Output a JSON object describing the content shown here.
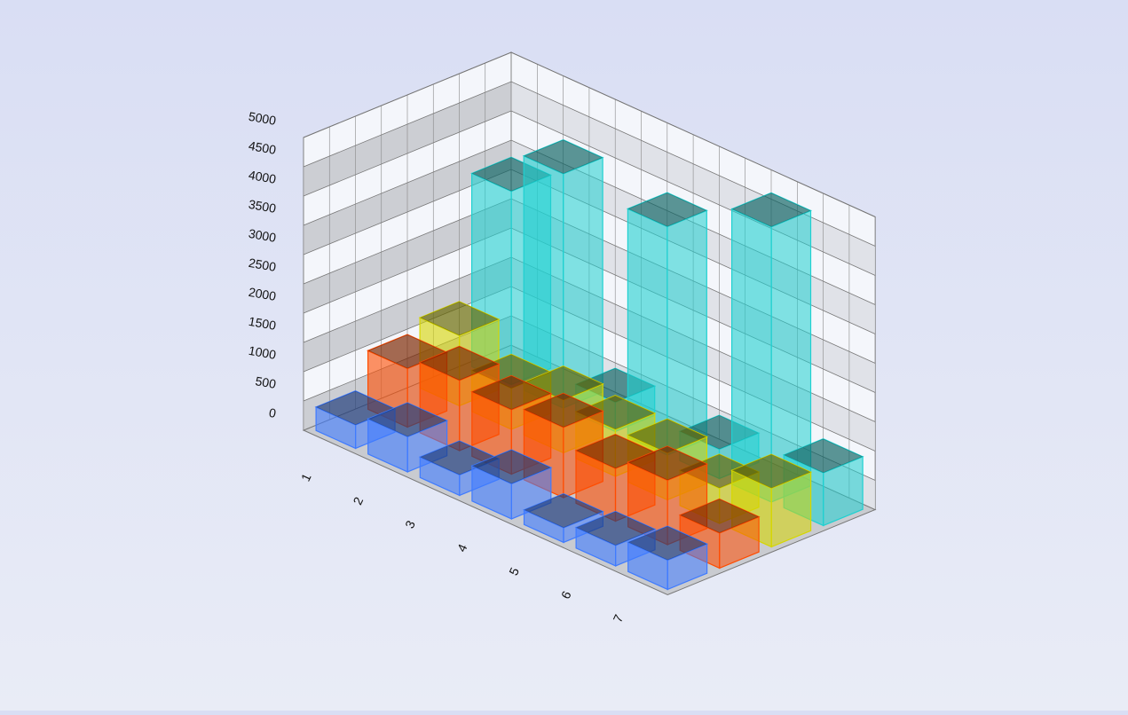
{
  "chart_data": {
    "type": "bar3d",
    "categories": [
      "1",
      "2",
      "3",
      "4",
      "5",
      "6",
      "7"
    ],
    "series": [
      {
        "color": "#3f7bff",
        "values": [
          400,
          600,
          350,
          600,
          250,
          350,
          500
        ]
      },
      {
        "color": "#ff4c00",
        "values": [
          1000,
          1200,
          1100,
          1200,
          900,
          1100,
          600
        ]
      },
      {
        "color": "#d6d600",
        "values": [
          1200,
          700,
          900,
          800,
          800,
          600,
          1000
        ]
      },
      {
        "color": "#1fd0d0",
        "values": [
          3300,
          4000,
          500,
          3900,
          500,
          4700,
          900
        ]
      }
    ],
    "ylim": [
      0,
      5000
    ],
    "yticks": [
      0,
      500,
      1000,
      1500,
      2000,
      2500,
      3000,
      3500,
      4000,
      4500,
      5000
    ],
    "grid": true
  }
}
